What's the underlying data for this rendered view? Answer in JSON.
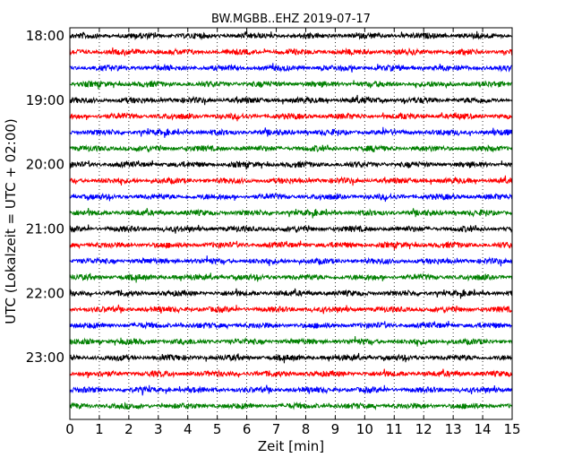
{
  "chart_data": {
    "type": "line",
    "title": "BW.MGBB..EHZ 2019-07-17",
    "xlabel": "Zeit  [min]",
    "ylabel": "UTC (Lokalzeit = UTC + 02:00)",
    "xlim": [
      0,
      15
    ],
    "x_ticks": [
      "0",
      "1",
      "2",
      "3",
      "4",
      "5",
      "6",
      "7",
      "8",
      "9",
      "10",
      "11",
      "12",
      "13",
      "14",
      "15"
    ],
    "y_ticks": [
      "18:00",
      "19:00",
      "20:00",
      "21:00",
      "22:00",
      "23:00"
    ],
    "grid": "vertical dotted at each minute",
    "legend": "none",
    "series_colors": [
      "#000000",
      "#ff0000",
      "#0000ff",
      "#008000"
    ],
    "traces": [
      {
        "start": "18:00",
        "color": "black"
      },
      {
        "start": "18:15",
        "color": "red"
      },
      {
        "start": "18:30",
        "color": "blue"
      },
      {
        "start": "18:45",
        "color": "green"
      },
      {
        "start": "19:00",
        "color": "black"
      },
      {
        "start": "19:15",
        "color": "red"
      },
      {
        "start": "19:30",
        "color": "blue"
      },
      {
        "start": "19:45",
        "color": "green"
      },
      {
        "start": "20:00",
        "color": "black"
      },
      {
        "start": "20:15",
        "color": "red"
      },
      {
        "start": "20:30",
        "color": "blue"
      },
      {
        "start": "20:45",
        "color": "green"
      },
      {
        "start": "21:00",
        "color": "black"
      },
      {
        "start": "21:15",
        "color": "red"
      },
      {
        "start": "21:30",
        "color": "blue"
      },
      {
        "start": "21:45",
        "color": "green"
      },
      {
        "start": "22:00",
        "color": "black"
      },
      {
        "start": "22:15",
        "color": "red"
      },
      {
        "start": "22:30",
        "color": "blue"
      },
      {
        "start": "22:45",
        "color": "green"
      },
      {
        "start": "23:00",
        "color": "black"
      },
      {
        "start": "23:15",
        "color": "red"
      },
      {
        "start": "23:30",
        "color": "blue"
      },
      {
        "start": "23:45",
        "color": "green"
      }
    ]
  }
}
